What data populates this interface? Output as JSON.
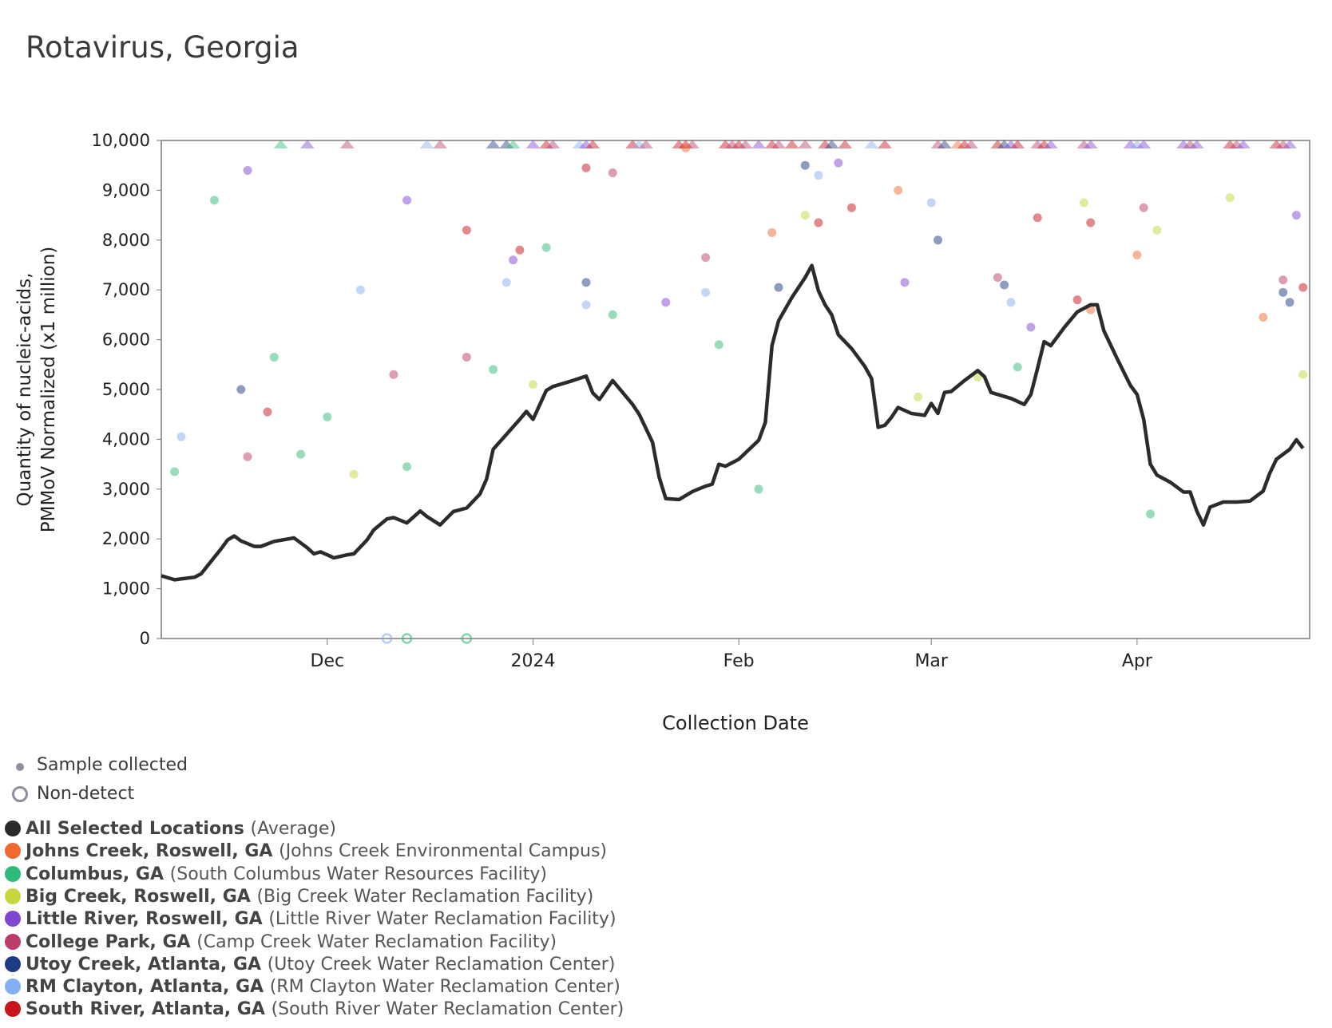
{
  "title": "Rotavirus, Georgia",
  "chart_data": {
    "type": "scatter",
    "title": "Rotavirus, Georgia",
    "xlabel": "Collection Date",
    "ylabel_lines": [
      "Quantity of nucleic-acids,",
      "PMMoV Normalized (x1 million)"
    ],
    "ylim": [
      0,
      10000
    ],
    "y_ticks": [
      0,
      1000,
      2000,
      3000,
      4000,
      5000,
      6000,
      7000,
      8000,
      9000,
      10000
    ],
    "y_tick_labels": [
      "0",
      "1,000",
      "2,000",
      "3,000",
      "4,000",
      "5,000",
      "6,000",
      "7,000",
      "8,000",
      "9,000",
      "10,000"
    ],
    "x_range": [
      "2023-11-06",
      "2024-04-27"
    ],
    "x_ticks": [
      "2023-12-01",
      "2024-01-01",
      "2024-02-01",
      "2024-03-01",
      "2024-04-01"
    ],
    "x_tick_labels": [
      "Dec",
      "2024",
      "Feb",
      "Mar",
      "Apr"
    ],
    "grid": false,
    "legend_markers": [
      {
        "label": "Sample collected",
        "marker": "dot"
      },
      {
        "label": "Non-detect",
        "marker": "ring"
      }
    ],
    "legend_placement": "below",
    "average_series": {
      "name": "All Selected Locations",
      "detail": "(Average)",
      "color": "#2b2b2b",
      "points": [
        [
          "2023-11-06",
          1260
        ],
        [
          "2023-11-08",
          1180
        ],
        [
          "2023-11-11",
          1230
        ],
        [
          "2023-11-12",
          1300
        ],
        [
          "2023-11-15",
          1800
        ],
        [
          "2023-11-16",
          1980
        ],
        [
          "2023-11-17",
          2060
        ],
        [
          "2023-11-18",
          1960
        ],
        [
          "2023-11-20",
          1850
        ],
        [
          "2023-11-21",
          1850
        ],
        [
          "2023-11-23",
          1950
        ],
        [
          "2023-11-26",
          2020
        ],
        [
          "2023-11-28",
          1820
        ],
        [
          "2023-11-29",
          1700
        ],
        [
          "2023-11-30",
          1740
        ],
        [
          "2023-12-01",
          1680
        ],
        [
          "2023-12-02",
          1620
        ],
        [
          "2023-12-04",
          1680
        ],
        [
          "2023-12-05",
          1700
        ],
        [
          "2023-12-07",
          1980
        ],
        [
          "2023-12-08",
          2180
        ],
        [
          "2023-12-10",
          2400
        ],
        [
          "2023-12-11",
          2430
        ],
        [
          "2023-12-13",
          2320
        ],
        [
          "2023-12-15",
          2560
        ],
        [
          "2023-12-16",
          2450
        ],
        [
          "2023-12-18",
          2280
        ],
        [
          "2023-12-20",
          2550
        ],
        [
          "2023-12-22",
          2620
        ],
        [
          "2023-12-24",
          2900
        ],
        [
          "2023-12-25",
          3200
        ],
        [
          "2023-12-26",
          3800
        ],
        [
          "2023-12-28",
          4100
        ],
        [
          "2023-12-30",
          4400
        ],
        [
          "2023-12-31",
          4560
        ],
        [
          "2024-01-01",
          4400
        ],
        [
          "2024-01-03",
          4980
        ],
        [
          "2024-01-04",
          5060
        ],
        [
          "2024-01-07",
          5180
        ],
        [
          "2024-01-09",
          5270
        ],
        [
          "2024-01-10",
          4930
        ],
        [
          "2024-01-11",
          4800
        ],
        [
          "2024-01-13",
          5180
        ],
        [
          "2024-01-16",
          4700
        ],
        [
          "2024-01-17",
          4500
        ],
        [
          "2024-01-19",
          3940
        ],
        [
          "2024-01-20",
          3240
        ],
        [
          "2024-01-21",
          2810
        ],
        [
          "2024-01-23",
          2790
        ],
        [
          "2024-01-25",
          2950
        ],
        [
          "2024-01-27",
          3060
        ],
        [
          "2024-01-28",
          3100
        ],
        [
          "2024-01-29",
          3500
        ],
        [
          "2024-01-30",
          3460
        ],
        [
          "2024-02-01",
          3600
        ],
        [
          "2024-02-04",
          3980
        ],
        [
          "2024-02-05",
          4340
        ],
        [
          "2024-02-06",
          5880
        ],
        [
          "2024-02-07",
          6380
        ],
        [
          "2024-02-09",
          6850
        ],
        [
          "2024-02-11",
          7250
        ],
        [
          "2024-02-12",
          7490
        ],
        [
          "2024-02-13",
          6980
        ],
        [
          "2024-02-14",
          6700
        ],
        [
          "2024-02-15",
          6500
        ],
        [
          "2024-02-16",
          6100
        ],
        [
          "2024-02-18",
          5820
        ],
        [
          "2024-02-20",
          5460
        ],
        [
          "2024-02-21",
          5220
        ],
        [
          "2024-02-22",
          4240
        ],
        [
          "2024-02-23",
          4280
        ],
        [
          "2024-02-24",
          4440
        ],
        [
          "2024-02-25",
          4640
        ],
        [
          "2024-02-27",
          4520
        ],
        [
          "2024-02-29",
          4480
        ],
        [
          "2024-03-01",
          4720
        ],
        [
          "2024-03-02",
          4520
        ],
        [
          "2024-03-03",
          4940
        ],
        [
          "2024-03-04",
          4960
        ],
        [
          "2024-03-06",
          5180
        ],
        [
          "2024-03-08",
          5380
        ],
        [
          "2024-03-09",
          5260
        ],
        [
          "2024-03-10",
          4940
        ],
        [
          "2024-03-13",
          4820
        ],
        [
          "2024-03-15",
          4700
        ],
        [
          "2024-03-16",
          4900
        ],
        [
          "2024-03-17",
          5420
        ],
        [
          "2024-03-18",
          5960
        ],
        [
          "2024-03-19",
          5880
        ],
        [
          "2024-03-21",
          6240
        ],
        [
          "2024-03-23",
          6560
        ],
        [
          "2024-03-25",
          6700
        ],
        [
          "2024-03-26",
          6700
        ],
        [
          "2024-03-27",
          6180
        ],
        [
          "2024-03-29",
          5620
        ],
        [
          "2024-03-31",
          5080
        ],
        [
          "2024-04-01",
          4900
        ],
        [
          "2024-04-02",
          4400
        ],
        [
          "2024-04-03",
          3500
        ],
        [
          "2024-04-04",
          3280
        ],
        [
          "2024-04-06",
          3140
        ],
        [
          "2024-04-08",
          2940
        ],
        [
          "2024-04-09",
          2940
        ],
        [
          "2024-04-10",
          2560
        ],
        [
          "2024-04-11",
          2280
        ],
        [
          "2024-04-12",
          2640
        ],
        [
          "2024-04-14",
          2740
        ],
        [
          "2024-04-16",
          2740
        ],
        [
          "2024-04-18",
          2760
        ],
        [
          "2024-04-20",
          2960
        ],
        [
          "2024-04-21",
          3320
        ],
        [
          "2024-04-22",
          3600
        ],
        [
          "2024-04-24",
          3800
        ],
        [
          "2024-04-25",
          3990
        ],
        [
          "2024-04-26",
          3820
        ]
      ]
    },
    "locations": [
      {
        "name": "Johns Creek, Roswell, GA",
        "detail": "(Johns Creek Environmental Campus)",
        "color": "#ef6a32"
      },
      {
        "name": "Columbus, GA",
        "detail": "(South Columbus Water Resources Facility)",
        "color": "#2fbb79"
      },
      {
        "name": "Big Creek, Roswell, GA",
        "detail": "(Big Creek Water Reclamation Facility)",
        "color": "#c6d63e"
      },
      {
        "name": "Little River, Roswell, GA",
        "detail": "(Little River Water Reclamation Facility)",
        "color": "#7f46d1"
      },
      {
        "name": "College Park, GA",
        "detail": "(Camp Creek Water Reclamation Facility)",
        "color": "#bb3d6a"
      },
      {
        "name": "Utoy Creek, Atlanta, GA",
        "detail": "(Utoy Creek Water Reclamation Center)",
        "color": "#1f3a85"
      },
      {
        "name": "RM Clayton, Atlanta, GA",
        "detail": "(RM Clayton Water Reclamation Center)",
        "color": "#84aef2"
      },
      {
        "name": "South River, Atlanta, GA",
        "detail": "(South River Water Reclamation Center)",
        "color": "#c6141d"
      }
    ],
    "samples": [
      {
        "loc": 1,
        "date": "2023-11-08",
        "value": 3350
      },
      {
        "loc": 1,
        "date": "2023-11-14",
        "value": 8800
      },
      {
        "loc": 1,
        "date": "2023-11-23",
        "value": 5650
      },
      {
        "loc": 1,
        "date": "2023-11-27",
        "value": 3700
      },
      {
        "loc": 1,
        "date": "2023-12-01",
        "value": 4450
      },
      {
        "loc": 1,
        "date": "2023-12-13",
        "value": 3450
      },
      {
        "loc": 1,
        "date": "2023-12-26",
        "value": 5400
      },
      {
        "loc": 1,
        "date": "2024-01-03",
        "value": 7850
      },
      {
        "loc": 1,
        "date": "2024-01-13",
        "value": 6500
      },
      {
        "loc": 1,
        "date": "2024-01-29",
        "value": 5900
      },
      {
        "loc": 1,
        "date": "2024-02-04",
        "value": 3000
      },
      {
        "loc": 1,
        "date": "2024-03-14",
        "value": 5450
      },
      {
        "loc": 1,
        "date": "2024-04-03",
        "value": 2500
      },
      {
        "loc": 2,
        "date": "2023-12-05",
        "value": 3300
      },
      {
        "loc": 2,
        "date": "2024-01-01",
        "value": 5100
      },
      {
        "loc": 2,
        "date": "2024-02-11",
        "value": 8500
      },
      {
        "loc": 2,
        "date": "2024-02-28",
        "value": 4850
      },
      {
        "loc": 2,
        "date": "2024-03-08",
        "value": 5250
      },
      {
        "loc": 2,
        "date": "2024-03-24",
        "value": 8750
      },
      {
        "loc": 2,
        "date": "2024-04-15",
        "value": 8850
      },
      {
        "loc": 2,
        "date": "2024-04-04",
        "value": 8200
      },
      {
        "loc": 2,
        "date": "2024-04-26",
        "value": 5300
      },
      {
        "loc": 3,
        "date": "2023-11-19",
        "value": 9400
      },
      {
        "loc": 3,
        "date": "2023-12-13",
        "value": 8800
      },
      {
        "loc": 3,
        "date": "2023-12-29",
        "value": 7600
      },
      {
        "loc": 3,
        "date": "2024-01-21",
        "value": 6750
      },
      {
        "loc": 3,
        "date": "2024-02-16",
        "value": 9550
      },
      {
        "loc": 3,
        "date": "2024-02-26",
        "value": 7150
      },
      {
        "loc": 3,
        "date": "2024-03-16",
        "value": 6250
      },
      {
        "loc": 3,
        "date": "2024-04-25",
        "value": 8500
      },
      {
        "loc": 4,
        "date": "2023-11-19",
        "value": 3650
      },
      {
        "loc": 4,
        "date": "2023-12-11",
        "value": 5300
      },
      {
        "loc": 4,
        "date": "2023-12-22",
        "value": 5650
      },
      {
        "loc": 4,
        "date": "2024-01-13",
        "value": 9350
      },
      {
        "loc": 4,
        "date": "2024-01-27",
        "value": 7650
      },
      {
        "loc": 4,
        "date": "2024-03-11",
        "value": 7250
      },
      {
        "loc": 4,
        "date": "2024-04-02",
        "value": 8650
      },
      {
        "loc": 4,
        "date": "2024-04-23",
        "value": 7200
      },
      {
        "loc": 5,
        "date": "2023-11-18",
        "value": 5000
      },
      {
        "loc": 5,
        "date": "2024-01-09",
        "value": 7150
      },
      {
        "loc": 5,
        "date": "2024-02-07",
        "value": 7050
      },
      {
        "loc": 5,
        "date": "2024-02-11",
        "value": 9500
      },
      {
        "loc": 5,
        "date": "2024-03-02",
        "value": 8000
      },
      {
        "loc": 5,
        "date": "2024-03-12",
        "value": 7100
      },
      {
        "loc": 5,
        "date": "2024-04-23",
        "value": 6950
      },
      {
        "loc": 5,
        "date": "2024-04-24",
        "value": 6750
      },
      {
        "loc": 6,
        "date": "2023-11-09",
        "value": 4050
      },
      {
        "loc": 6,
        "date": "2023-12-06",
        "value": 7000
      },
      {
        "loc": 6,
        "date": "2023-12-28",
        "value": 7150
      },
      {
        "loc": 6,
        "date": "2024-01-09",
        "value": 6700
      },
      {
        "loc": 6,
        "date": "2024-01-27",
        "value": 6950
      },
      {
        "loc": 6,
        "date": "2024-02-13",
        "value": 9300
      },
      {
        "loc": 6,
        "date": "2024-03-01",
        "value": 8750
      },
      {
        "loc": 6,
        "date": "2024-03-13",
        "value": 6750
      },
      {
        "loc": 7,
        "date": "2023-11-22",
        "value": 4550
      },
      {
        "loc": 7,
        "date": "2023-12-22",
        "value": 8200
      },
      {
        "loc": 7,
        "date": "2023-12-30",
        "value": 7800
      },
      {
        "loc": 7,
        "date": "2024-01-09",
        "value": 9450
      },
      {
        "loc": 7,
        "date": "2024-02-13",
        "value": 8350
      },
      {
        "loc": 7,
        "date": "2024-02-18",
        "value": 8650
      },
      {
        "loc": 7,
        "date": "2024-03-17",
        "value": 8450
      },
      {
        "loc": 7,
        "date": "2024-03-23",
        "value": 6800
      },
      {
        "loc": 7,
        "date": "2024-03-25",
        "value": 8350
      },
      {
        "loc": 7,
        "date": "2024-04-26",
        "value": 7050
      },
      {
        "loc": 0,
        "date": "2024-02-06",
        "value": 8150
      },
      {
        "loc": 0,
        "date": "2024-02-25",
        "value": 9000
      },
      {
        "loc": 0,
        "date": "2024-04-01",
        "value": 7700
      },
      {
        "loc": 0,
        "date": "2024-04-20",
        "value": 6450
      },
      {
        "loc": 0,
        "date": "2024-03-25",
        "value": 6600
      },
      {
        "loc": 0,
        "date": "2024-01-24",
        "value": 9850
      }
    ],
    "non_detects": [
      {
        "loc": 6,
        "date": "2023-12-10",
        "value": 0
      },
      {
        "loc": 1,
        "date": "2023-12-13",
        "value": 0
      },
      {
        "loc": 1,
        "date": "2023-12-22",
        "value": 0
      }
    ],
    "off_scale_markers": [
      {
        "loc": 1,
        "date": "2023-11-24"
      },
      {
        "loc": 3,
        "date": "2023-11-28"
      },
      {
        "loc": 4,
        "date": "2023-12-04"
      },
      {
        "loc": 6,
        "date": "2023-12-16"
      },
      {
        "loc": 4,
        "date": "2023-12-18"
      },
      {
        "loc": 5,
        "date": "2023-12-26"
      },
      {
        "loc": 5,
        "date": "2023-12-28"
      },
      {
        "loc": 1,
        "date": "2023-12-29"
      },
      {
        "loc": 3,
        "date": "2024-01-01"
      },
      {
        "loc": 7,
        "date": "2024-01-03"
      },
      {
        "loc": 4,
        "date": "2024-01-04"
      },
      {
        "loc": 6,
        "date": "2024-01-08"
      },
      {
        "loc": 3,
        "date": "2024-01-09"
      },
      {
        "loc": 7,
        "date": "2024-01-10"
      },
      {
        "loc": 7,
        "date": "2024-01-16"
      },
      {
        "loc": 6,
        "date": "2024-01-17"
      },
      {
        "loc": 4,
        "date": "2024-01-18"
      },
      {
        "loc": 7,
        "date": "2024-01-23"
      },
      {
        "loc": 7,
        "date": "2024-01-24"
      },
      {
        "loc": 4,
        "date": "2024-01-25"
      },
      {
        "loc": 7,
        "date": "2024-01-30"
      },
      {
        "loc": 4,
        "date": "2024-01-31"
      },
      {
        "loc": 7,
        "date": "2024-02-01"
      },
      {
        "loc": 4,
        "date": "2024-02-02"
      },
      {
        "loc": 3,
        "date": "2024-02-04"
      },
      {
        "loc": 7,
        "date": "2024-02-06"
      },
      {
        "loc": 4,
        "date": "2024-02-07"
      },
      {
        "loc": 7,
        "date": "2024-02-09"
      },
      {
        "loc": 4,
        "date": "2024-02-11"
      },
      {
        "loc": 7,
        "date": "2024-02-14"
      },
      {
        "loc": 5,
        "date": "2024-02-15"
      },
      {
        "loc": 7,
        "date": "2024-02-17"
      },
      {
        "loc": 6,
        "date": "2024-02-21"
      },
      {
        "loc": 7,
        "date": "2024-02-23"
      },
      {
        "loc": 4,
        "date": "2024-03-02"
      },
      {
        "loc": 5,
        "date": "2024-03-03"
      },
      {
        "loc": 0,
        "date": "2024-03-05"
      },
      {
        "loc": 7,
        "date": "2024-03-06"
      },
      {
        "loc": 4,
        "date": "2024-03-07"
      },
      {
        "loc": 7,
        "date": "2024-03-11"
      },
      {
        "loc": 5,
        "date": "2024-03-12"
      },
      {
        "loc": 3,
        "date": "2024-03-13"
      },
      {
        "loc": 7,
        "date": "2024-03-14"
      },
      {
        "loc": 4,
        "date": "2024-03-17"
      },
      {
        "loc": 7,
        "date": "2024-03-18"
      },
      {
        "loc": 3,
        "date": "2024-03-19"
      },
      {
        "loc": 4,
        "date": "2024-03-24"
      },
      {
        "loc": 3,
        "date": "2024-03-25"
      },
      {
        "loc": 3,
        "date": "2024-03-31"
      },
      {
        "loc": 6,
        "date": "2024-04-01"
      },
      {
        "loc": 3,
        "date": "2024-04-02"
      },
      {
        "loc": 3,
        "date": "2024-04-08"
      },
      {
        "loc": 4,
        "date": "2024-04-09"
      },
      {
        "loc": 3,
        "date": "2024-04-10"
      },
      {
        "loc": 7,
        "date": "2024-04-15"
      },
      {
        "loc": 4,
        "date": "2024-04-16"
      },
      {
        "loc": 3,
        "date": "2024-04-17"
      },
      {
        "loc": 7,
        "date": "2024-04-22"
      },
      {
        "loc": 4,
        "date": "2024-04-23"
      },
      {
        "loc": 3,
        "date": "2024-04-24"
      }
    ]
  }
}
